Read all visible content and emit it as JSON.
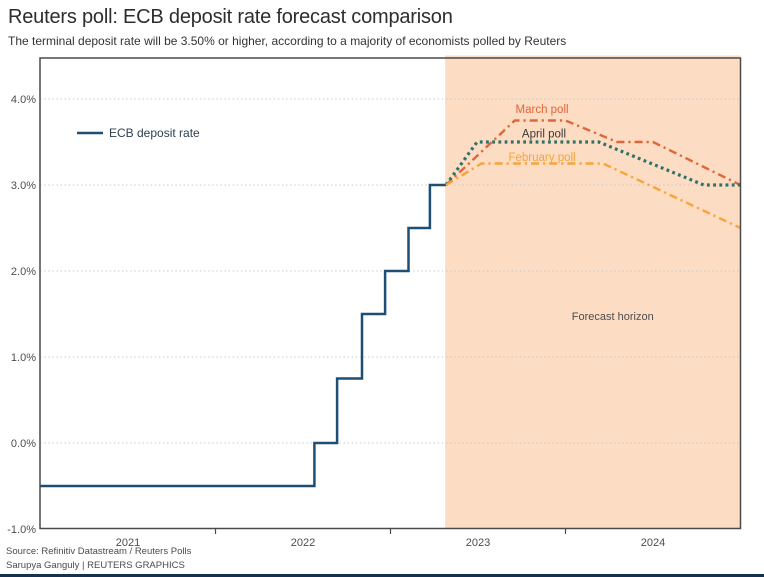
{
  "header": {
    "title": "Reuters poll: ECB deposit rate forecast comparison",
    "subtitle": "The terminal deposit rate will be 3.50% or higher, according to a majority of economists polled by Reuters"
  },
  "footer": {
    "source": "Source: Refinitiv Datastream / Reuters Polls",
    "credit": "Sarupya Ganguly | REUTERS GRAPHICS"
  },
  "colors": {
    "ecb_line": "#1f4e74",
    "march": "#e0663a",
    "april": "#2f7169",
    "april_label": "#3a3a3a",
    "february": "#f6a43b",
    "forecast_region": "#fcdcc2",
    "grid": "#c9c9c9",
    "border": "#4a4a4a",
    "axis_text": "#4d4d4d",
    "annotation": "#4d4d4d",
    "legend_text": "#2e3f50",
    "bottom_bar": "#14314f"
  },
  "chart_data": {
    "type": "line",
    "x_axis": {
      "range": [
        2021,
        2025
      ],
      "tick_positions": [
        2022,
        2023,
        2024
      ],
      "labels": [
        {
          "text": "2021",
          "x": 2021.5
        },
        {
          "text": "2022",
          "x": 2022.5
        },
        {
          "text": "2023",
          "x": 2023.5
        },
        {
          "text": "2024",
          "x": 2024.5
        }
      ]
    },
    "y_axis": {
      "range": [
        -1.0,
        4.47
      ],
      "gridlines": [
        4.0,
        3.0,
        2.0,
        1.0,
        0.0
      ],
      "labels": [
        {
          "text": "4.0%",
          "v": 4.0
        },
        {
          "text": "3.0%",
          "v": 3.0
        },
        {
          "text": "2.0%",
          "v": 2.0
        },
        {
          "text": "1.0%",
          "v": 1.0
        },
        {
          "text": "0.0%",
          "v": 0.0
        },
        {
          "text": "-1.0%",
          "v": -1.0
        }
      ]
    },
    "forecast_region": {
      "x_start": 2023.312,
      "x_end": 2025.0,
      "label": "Forecast horizon",
      "label_x": 2024.27,
      "label_y": 1.43
    },
    "legend": {
      "label": "ECB deposit rate"
    },
    "series": [
      {
        "id": "ecb-deposit-rate",
        "name": "ECB deposit rate",
        "style": "solid",
        "color_key": "ecb_line",
        "points": [
          [
            2021.0,
            -0.5
          ],
          [
            2022.565,
            -0.5
          ],
          [
            2022.565,
            0.0
          ],
          [
            2022.695,
            0.0
          ],
          [
            2022.695,
            0.75
          ],
          [
            2022.837,
            0.75
          ],
          [
            2022.837,
            1.5
          ],
          [
            2022.969,
            1.5
          ],
          [
            2022.969,
            2.0
          ],
          [
            2023.103,
            2.0
          ],
          [
            2023.103,
            2.5
          ],
          [
            2023.225,
            2.5
          ],
          [
            2023.225,
            3.0
          ],
          [
            2023.317,
            3.0
          ]
        ]
      },
      {
        "id": "march-poll",
        "name": "March poll",
        "style": "dashdot",
        "color_key": "march",
        "label": {
          "text": "March poll",
          "x": 2023.866,
          "y": 3.84,
          "color_key": "march"
        },
        "points": [
          [
            2023.317,
            3.0
          ],
          [
            2023.71,
            3.75
          ],
          [
            2024.0,
            3.75
          ],
          [
            2024.295,
            3.5
          ],
          [
            2024.5,
            3.5
          ],
          [
            2025.0,
            3.0
          ]
        ]
      },
      {
        "id": "april-poll",
        "name": "April poll",
        "style": "dotted",
        "color_key": "april",
        "label": {
          "text": "April poll",
          "x": 2023.877,
          "y": 3.55,
          "color_key": "april_label"
        },
        "points": [
          [
            2023.317,
            3.0
          ],
          [
            2023.495,
            3.5
          ],
          [
            2024.19,
            3.5
          ],
          [
            2024.79,
            3.0
          ],
          [
            2025.0,
            3.0
          ]
        ]
      },
      {
        "id": "february-poll",
        "name": "February poll",
        "style": "dashdot",
        "color_key": "february",
        "label": {
          "text": "February poll",
          "x": 2023.866,
          "y": 3.28,
          "color_key": "february"
        },
        "points": [
          [
            2023.317,
            3.0
          ],
          [
            2023.52,
            3.25
          ],
          [
            2024.215,
            3.25
          ],
          [
            2025.0,
            2.5
          ]
        ]
      }
    ]
  }
}
